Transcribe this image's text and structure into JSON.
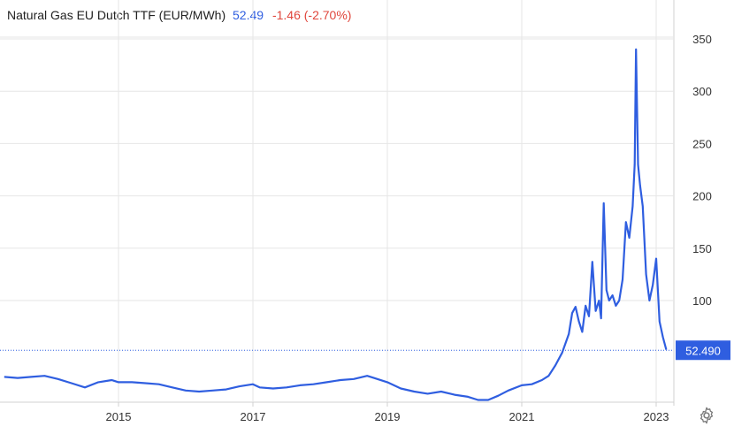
{
  "header": {
    "title": "Natural Gas EU Dutch TTF (EUR/MWh)",
    "last": "52.49",
    "change": "-1.46 (-2.70%)"
  },
  "colors": {
    "line": "#2f5ee0",
    "change_negative": "#e0463c",
    "grid": "#e6e6e6",
    "axis": "#d0d0d0",
    "text": "#333333"
  },
  "chart_data": {
    "type": "line",
    "title": "Natural Gas EU Dutch TTF (EUR/MWh)",
    "xlabel": "",
    "ylabel": "",
    "x_ticks": [
      "2015",
      "2017",
      "2019",
      "2021",
      "2023"
    ],
    "y_ticks": [
      100,
      150,
      200,
      250,
      300,
      350
    ],
    "ylim": [
      0,
      370
    ],
    "xlim": [
      2013.3,
      2023.15
    ],
    "grid": true,
    "legend": "none",
    "last_value_label": "52.490",
    "last_value": 52.49,
    "series": [
      {
        "x": [
          2013.3,
          2013.5,
          2013.7,
          2013.9,
          2014.1,
          2014.3,
          2014.5,
          2014.7,
          2014.9,
          2015.0,
          2015.2,
          2015.4,
          2015.6,
          2015.8,
          2016.0,
          2016.2,
          2016.4,
          2016.6,
          2016.8,
          2017.0,
          2017.1,
          2017.3,
          2017.5,
          2017.7,
          2017.9,
          2018.1,
          2018.3,
          2018.5,
          2018.7,
          2018.8,
          2019.0,
          2019.2,
          2019.4,
          2019.6,
          2019.8,
          2020.0,
          2020.2,
          2020.35,
          2020.5,
          2020.65,
          2020.8,
          2021.0,
          2021.15,
          2021.3,
          2021.4,
          2021.5,
          2021.6,
          2021.7,
          2021.75,
          2021.8,
          2021.85,
          2021.9,
          2021.95,
          2022.0,
          2022.05,
          2022.1,
          2022.15,
          2022.18,
          2022.22,
          2022.26,
          2022.3,
          2022.35,
          2022.4,
          2022.45,
          2022.5,
          2022.55,
          2022.6,
          2022.65,
          2022.68,
          2022.7,
          2022.73,
          2022.76,
          2022.8,
          2022.85,
          2022.9,
          2022.95,
          2023.0,
          2023.05,
          2023.1,
          2023.15
        ],
        "y": [
          27,
          26,
          27,
          28,
          25,
          21,
          17,
          22,
          24,
          22,
          22,
          21,
          20,
          17,
          14,
          13,
          14,
          15,
          18,
          20,
          17,
          16,
          17,
          19,
          20,
          22,
          24,
          25,
          28,
          26,
          22,
          16,
          13,
          11,
          13,
          10,
          8,
          5,
          5,
          9,
          14,
          19,
          20,
          24,
          28,
          38,
          50,
          68,
          88,
          94,
          80,
          70,
          95,
          85,
          137,
          90,
          100,
          83,
          193,
          110,
          100,
          105,
          95,
          100,
          120,
          175,
          160,
          190,
          230,
          340,
          230,
          210,
          190,
          125,
          100,
          115,
          140,
          80,
          65,
          53
        ]
      }
    ]
  }
}
